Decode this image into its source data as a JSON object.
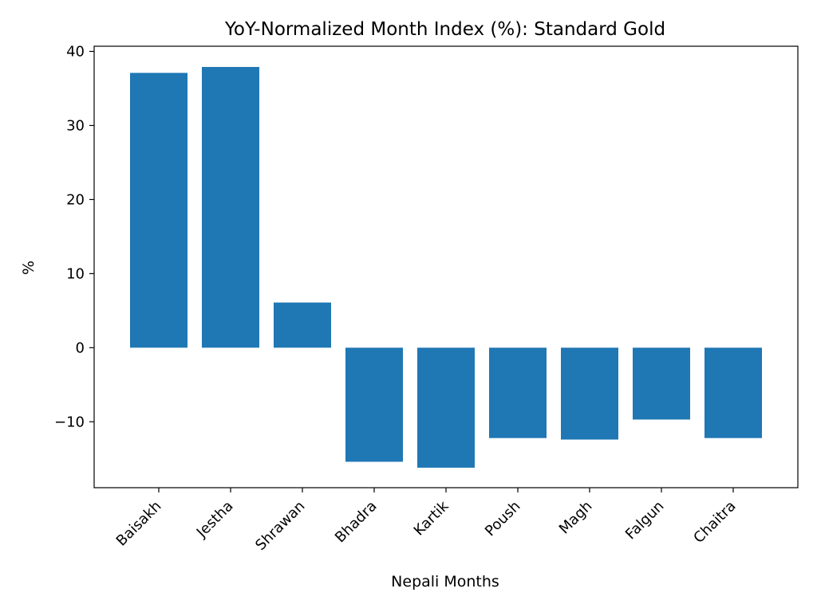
{
  "chart_data": {
    "type": "bar",
    "title": "YoY-Normalized Month Index (%): Standard Gold",
    "xlabel": "Nepali Months",
    "ylabel": "%",
    "categories": [
      "Baisakh",
      "Jestha",
      "Shrawan",
      "Bhadra",
      "Kartik",
      "Poush",
      "Magh",
      "Falgun",
      "Chaitra"
    ],
    "values": [
      37.1,
      37.9,
      6.1,
      -15.4,
      -16.2,
      -12.2,
      -12.4,
      -9.7,
      -12.2
    ],
    "ylim": [
      -18.9,
      40.7
    ],
    "yticks": [
      -10,
      0,
      10,
      20,
      30,
      40
    ],
    "ytick_labels": [
      "−10",
      "0",
      "10",
      "20",
      "30",
      "40"
    ],
    "bar_color": "#1f77b4",
    "grid": false,
    "legend": "none"
  }
}
